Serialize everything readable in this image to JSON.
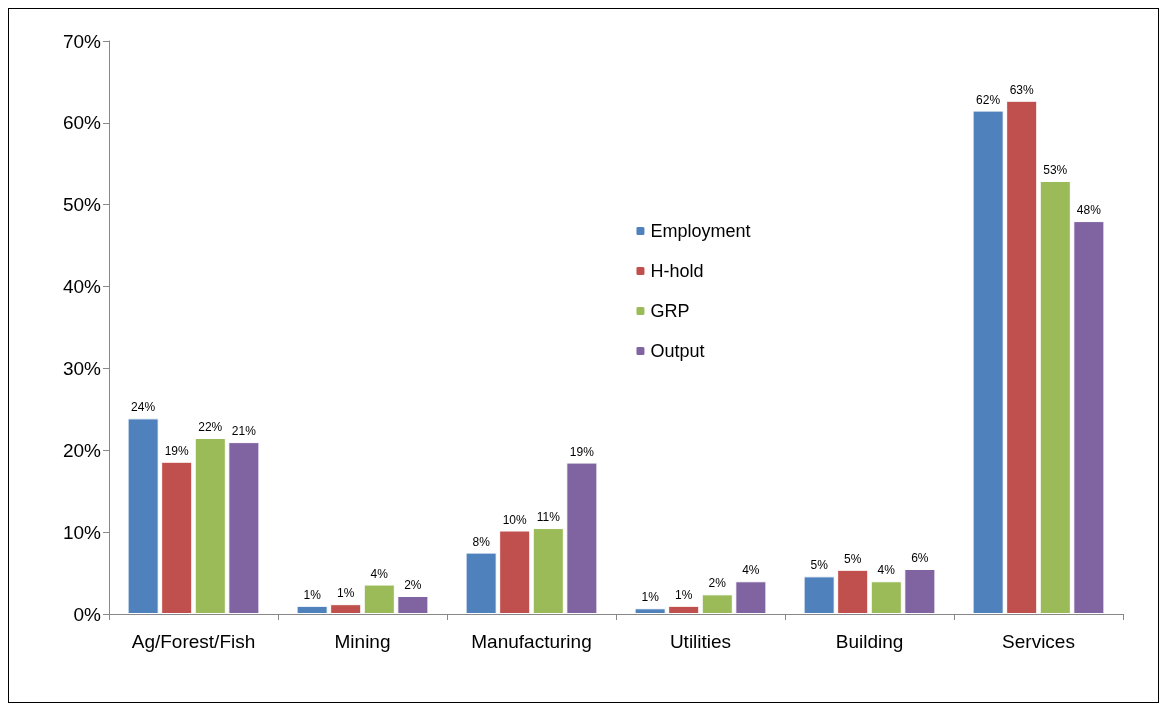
{
  "chart_data": {
    "type": "bar",
    "categories": [
      "Ag/Forest/Fish",
      "Mining",
      "Manufacturing",
      "Utilities",
      "Building",
      "Services"
    ],
    "series": [
      {
        "name": "Employment",
        "color": "#4f81bd",
        "values": [
          23.9,
          1.0,
          7.5,
          0.7,
          4.6,
          61.5
        ],
        "value_labels": [
          "24%",
          "1%",
          "8%",
          "1%",
          "5%",
          "62%"
        ]
      },
      {
        "name": "H-hold",
        "color": "#c0504d",
        "values": [
          18.6,
          1.2,
          10.2,
          1.0,
          5.4,
          62.7
        ],
        "value_labels": [
          "19%",
          "1%",
          "10%",
          "1%",
          "5%",
          "63%"
        ]
      },
      {
        "name": "GRP",
        "color": "#9bbb59",
        "values": [
          21.5,
          3.6,
          10.5,
          2.4,
          4.0,
          52.9
        ],
        "value_labels": [
          "22%",
          "4%",
          "11%",
          "2%",
          "4%",
          "53%"
        ]
      },
      {
        "name": "Output",
        "color": "#8064a2",
        "values": [
          21.0,
          2.2,
          18.5,
          4.0,
          5.5,
          48.0
        ],
        "value_labels": [
          "21%",
          "2%",
          "19%",
          "4%",
          "6%",
          "48%"
        ]
      }
    ],
    "ylim": [
      0,
      70
    ],
    "yticks": [
      {
        "value": 0,
        "label": "0%"
      },
      {
        "value": 10,
        "label": "10%"
      },
      {
        "value": 20,
        "label": "20%"
      },
      {
        "value": 30,
        "label": "30%"
      },
      {
        "value": 40,
        "label": "40%"
      },
      {
        "value": 50,
        "label": "50%"
      },
      {
        "value": 60,
        "label": "60%"
      },
      {
        "value": 70,
        "label": "70%"
      }
    ],
    "grid": false,
    "legend": "top"
  }
}
